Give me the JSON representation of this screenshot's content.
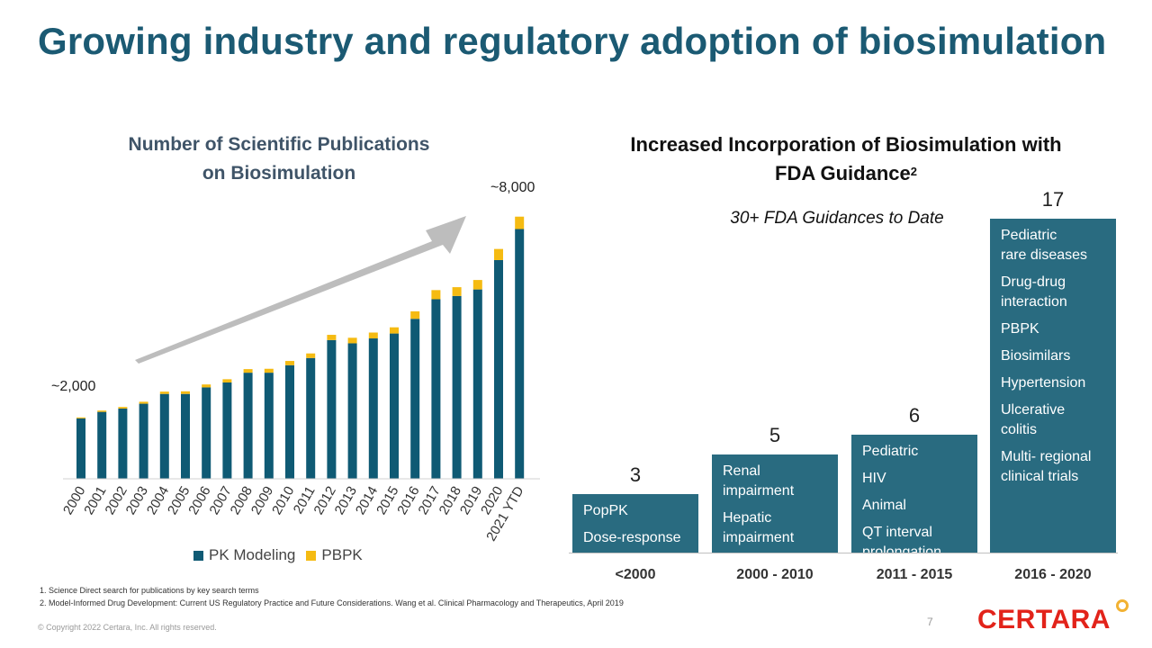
{
  "colors": {
    "accent": "#1b5a73",
    "bar": "#296b80",
    "pk": "#0f5a74",
    "pbpk": "#f5bb12",
    "arrow": "#bdbdbd"
  },
  "title": "Growing industry and regulatory adoption of biosimulation",
  "left_chart": {
    "title_line1": "Number of Scientific Publications",
    "title_line2": "on Biosimulation",
    "callout_start": "~2,000",
    "callout_end": "~8,000",
    "legend": [
      "PK Modeling",
      "PBPK"
    ]
  },
  "right_chart": {
    "title_line1": "Increased Incorporation of Biosimulation with",
    "title_line2": "FDA Guidance",
    "title_sup": "2",
    "subtitle": "30+ FDA Guidances to Date",
    "eras": [
      {
        "period": "<2000",
        "count": "3",
        "items": [
          [
            "PopPK"
          ],
          [
            "Dose-response"
          ]
        ]
      },
      {
        "period": "2000 - 2010",
        "count": "5",
        "items": [
          [
            "Renal",
            "impairment"
          ],
          [
            "Hepatic",
            "impairment"
          ]
        ]
      },
      {
        "period": "2011 - 2015",
        "count": "6",
        "items": [
          [
            "Pediatric"
          ],
          [
            "HIV"
          ],
          [
            "Animal"
          ],
          [
            "QT interval",
            "prolongation"
          ]
        ]
      },
      {
        "period": "2016 - 2020",
        "count": "17",
        "items": [
          [
            "Pediatric",
            "rare diseases"
          ],
          [
            "Drug-drug",
            "interaction"
          ],
          [
            "PBPK"
          ],
          [
            "Biosimilars"
          ],
          [
            "Hypertension"
          ],
          [
            "Ulcerative",
            "colitis"
          ],
          [
            "Multi- regional",
            "clinical trials"
          ]
        ]
      }
    ]
  },
  "chart_data": {
    "type": "bar",
    "stacked": true,
    "categories": [
      "2000",
      "2001",
      "2002",
      "2003",
      "2004",
      "2005",
      "2006",
      "2007",
      "2008",
      "2009",
      "2010",
      "2011",
      "2012",
      "2013",
      "2014",
      "2015",
      "2016",
      "2017",
      "2018",
      "2019",
      "2020",
      "2021 YTD"
    ],
    "series": [
      {
        "name": "PK Modeling",
        "values": [
          1850,
          2050,
          2150,
          2300,
          2600,
          2600,
          2800,
          2950,
          3250,
          3250,
          3480,
          3700,
          4250,
          4150,
          4300,
          4450,
          4900,
          5500,
          5600,
          5800,
          6700,
          7650
        ]
      },
      {
        "name": "PBPK",
        "values": [
          30,
          40,
          50,
          60,
          70,
          80,
          90,
          100,
          110,
          120,
          130,
          140,
          160,
          170,
          180,
          190,
          230,
          280,
          270,
          290,
          340,
          380
        ]
      }
    ],
    "legend_position": "bottom",
    "grid": false
  },
  "footnotes": [
    "1.  Science Direct search for publications by key search terms",
    "2.  Model-Informed Drug Development: Current US Regulatory Practice and Future Considerations.  Wang et al.  Clinical Pharmacology and Therapeutics, April 2019"
  ],
  "copyright": "© Copyright 2022 Certara, Inc.  All rights reserved.",
  "page_number": "7",
  "logo": "CERTARA"
}
